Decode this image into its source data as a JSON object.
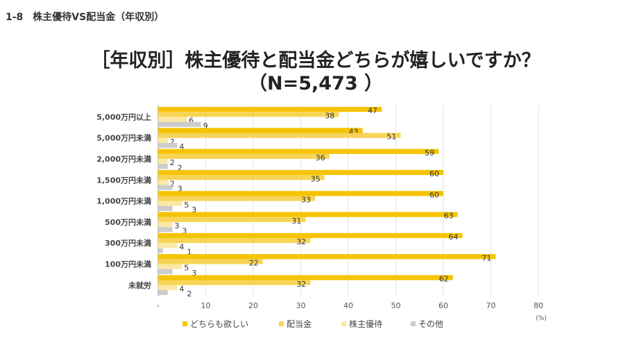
{
  "header": "1-8　株主優待VS配当金（年収別）",
  "chart_data": {
    "type": "bar",
    "orientation": "horizontal",
    "title": "［年収別］株主優待と配当金どちらが嬉しいですか？",
    "subtitle": "（N=5,473 ）",
    "categories": [
      "5,000万円以上",
      "5,000万円未満",
      "2,000万円未満",
      "1,500万円未満",
      "1,000万円未満",
      "500万円未満",
      "300万円未満",
      "100万円未満",
      "未就労"
    ],
    "series": [
      {
        "name": "どちらも欲しい",
        "color": "#f5c400",
        "values": [
          47,
          43,
          59,
          60,
          60,
          63,
          64,
          71,
          62
        ]
      },
      {
        "name": "配当金",
        "color": "#f7d456",
        "values": [
          38,
          51,
          36,
          35,
          33,
          31,
          32,
          22,
          32
        ]
      },
      {
        "name": "株主優待",
        "color": "#fbe8a4",
        "values": [
          6,
          2,
          2,
          2,
          5,
          3,
          4,
          5,
          4
        ]
      },
      {
        "name": "その他",
        "color": "#cccccc",
        "values": [
          9,
          4,
          2,
          3,
          3,
          3,
          1,
          3,
          2
        ]
      }
    ],
    "xlim": [
      0,
      80
    ],
    "xticks": [
      "-",
      "10",
      "20",
      "30",
      "40",
      "50",
      "60",
      "70",
      "80"
    ],
    "xunit": "(%)",
    "grid": true,
    "legend": "bottom"
  }
}
